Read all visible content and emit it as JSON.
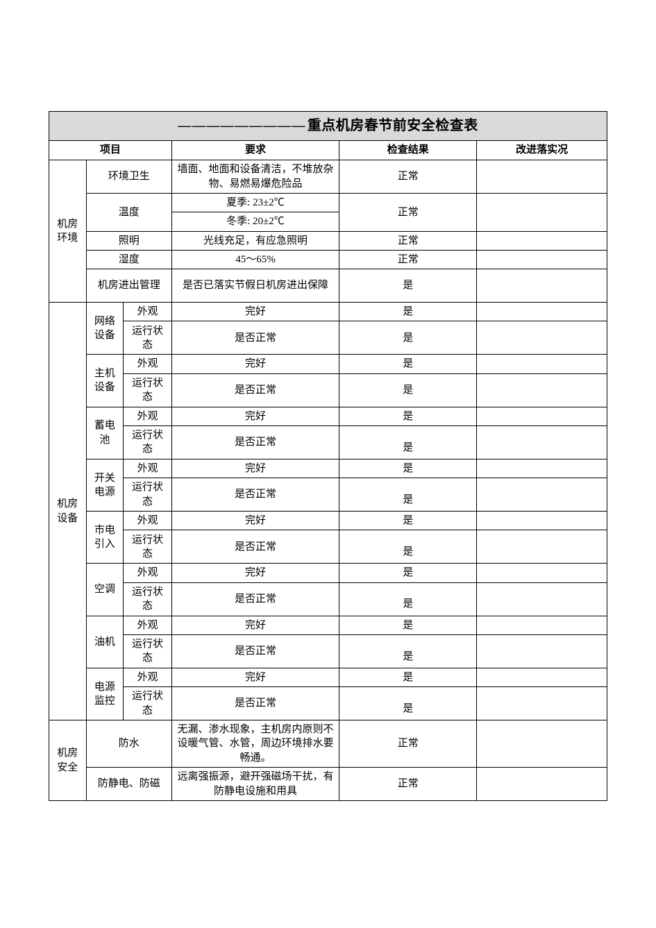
{
  "title": {
    "prefix": "—————————",
    "text": "重点机房春节前安全检查表"
  },
  "columns": {
    "c0_width": 50,
    "c1_width": 50,
    "c2_width": 65,
    "c3_width": 225,
    "c4_width": 185,
    "c5_width": 175,
    "project": "项目",
    "requirement": "要求",
    "result": "检查结果",
    "improve": "改进落实况"
  },
  "sections": {
    "env": {
      "label": "机房\n环境",
      "rows": {
        "hygiene": {
          "label": "环境卫生",
          "req": "墙面、地面和设备清洁，不堆放杂物、易燃易爆危险品",
          "result": "正常"
        },
        "temp": {
          "label": "温度",
          "req1": "夏季: 23±2℃",
          "req2": "冬季:  20±2℃",
          "result": "正常"
        },
        "light": {
          "label": "照明",
          "req": "光线充足，有应急照明",
          "result": "正常"
        },
        "humidity": {
          "label": "湿度",
          "req": "45～65%",
          "result": "正常"
        },
        "access": {
          "label": "机房进出管理",
          "req": "是否已落实节假日机房进出保障",
          "result": "是"
        }
      }
    },
    "equip": {
      "label": "机房\n设备",
      "groups": [
        {
          "label": "网络\n设备",
          "appearance": {
            "label": "外观",
            "req": "完好",
            "result": "是"
          },
          "running": {
            "label": "运行状\n态",
            "req": "是否正常",
            "result": "是",
            "result_align": "middle"
          }
        },
        {
          "label": "主机\n设备",
          "appearance": {
            "label": "外观",
            "req": "完好",
            "result": "是"
          },
          "running": {
            "label": "运行状\n态",
            "req": "是否正常",
            "result": "是",
            "result_align": "middle"
          }
        },
        {
          "label": "蓄电\n池",
          "appearance": {
            "label": "外观",
            "req": "完好",
            "result": "是"
          },
          "running": {
            "label": "运行状\n态",
            "req": "是否正常",
            "result": "是",
            "result_align": "bottom"
          }
        },
        {
          "label": "开关\n电源",
          "appearance": {
            "label": "外观",
            "req": "完好",
            "result": "是"
          },
          "running": {
            "label": "运行状\n态",
            "req": "是否正常",
            "result": "是",
            "result_align": "bottom"
          }
        },
        {
          "label": "市电\n引入",
          "appearance": {
            "label": "外观",
            "req": "完好",
            "result": "是"
          },
          "running": {
            "label": "运行状\n态",
            "req": "是否正常",
            "result": "是",
            "result_align": "bottom"
          }
        },
        {
          "label": "空调",
          "appearance": {
            "label": "外观",
            "req": "完好",
            "result": "是"
          },
          "running": {
            "label": "运行状\n态",
            "req": "是否正常",
            "result": "是",
            "result_align": "bottom"
          }
        },
        {
          "label": "油机",
          "appearance": {
            "label": "外观",
            "req": "完好",
            "result": "是"
          },
          "running": {
            "label": "运行状\n态",
            "req": "是否正常",
            "result": "是",
            "result_align": "bottom"
          }
        },
        {
          "label": "电源\n监控",
          "appearance": {
            "label": "外观",
            "req": "完好",
            "result": "是"
          },
          "running": {
            "label": "运行状\n态",
            "req": "是否正常",
            "result": "是",
            "result_align": "bottom"
          }
        }
      ]
    },
    "safety": {
      "label": "机房\n安全",
      "rows": {
        "water": {
          "label": "防水",
          "req": "无漏、渗水现象，主机房内原则不设暖气管、水管，周边环境排水要畅通。",
          "result": "正常"
        },
        "static": {
          "label": "防静电、防磁",
          "req": "远离强振源，避开强磁场干扰，有防静电设施和用具",
          "result": "正常"
        }
      }
    }
  }
}
